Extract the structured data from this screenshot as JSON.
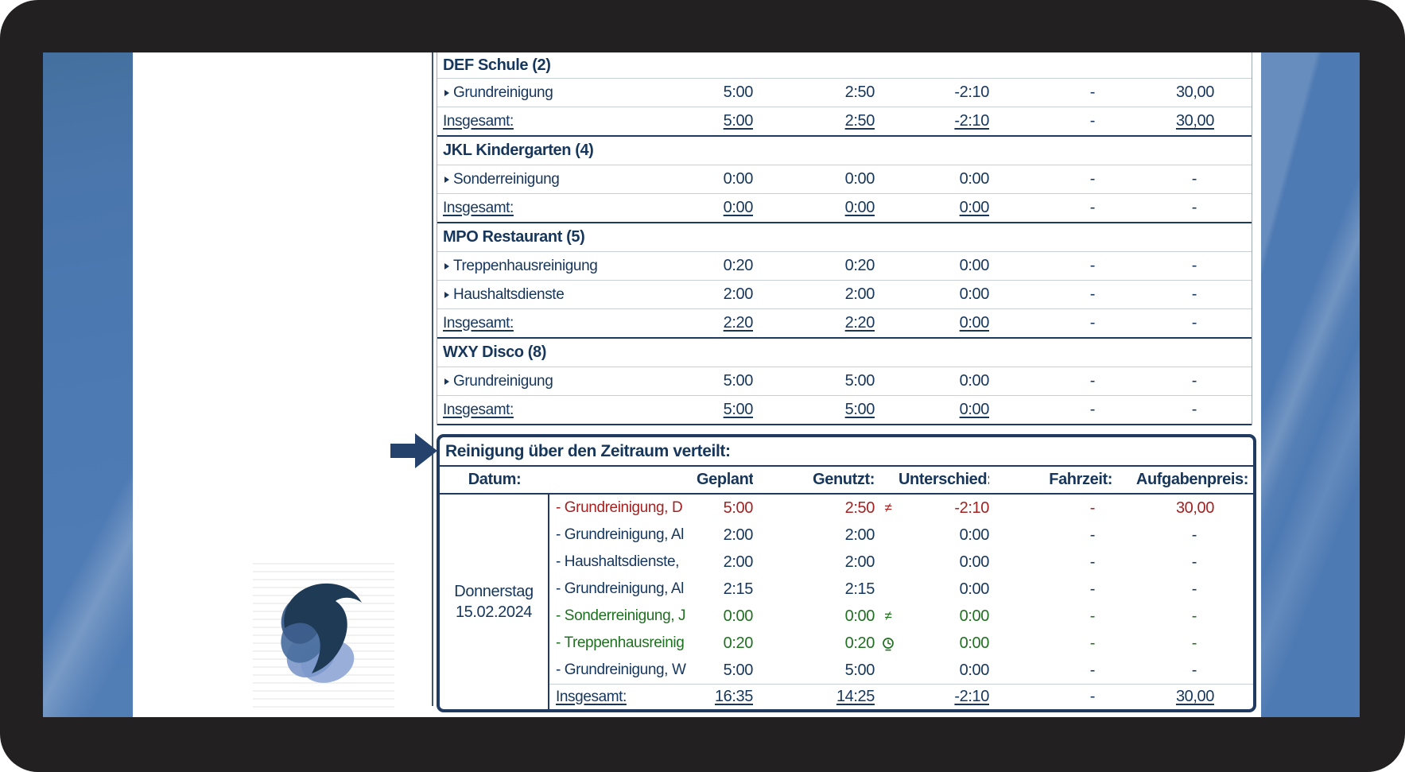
{
  "colors": {
    "navy_text": "#16365c",
    "alert_red": "#a32222",
    "ok_green": "#207021",
    "table_border_navy": "#203a60",
    "sidebar_blue": "#4e7ab3",
    "frame_dark": "#222020"
  },
  "icons": {
    "not_equal_symbol": "≠",
    "clock": "clock-icon",
    "expand_marker": "right-triangle",
    "pointer_arrow": "right-arrow"
  },
  "top_table": {
    "groups": [
      {
        "name": "DEF Schule (2)",
        "tasks": [
          {
            "name": "Grundreinigung",
            "geplant": "5:00",
            "genutzt": "2:50",
            "unterschied": "-2:10",
            "fahrzeit": "-",
            "preis": "30,00"
          }
        ],
        "total": {
          "label": "Insgesamt:",
          "geplant": "5:00",
          "genutzt": "2:50",
          "unterschied": "-2:10",
          "fahrzeit": "-",
          "preis": "30,00"
        }
      },
      {
        "name": "JKL Kindergarten (4)",
        "tasks": [
          {
            "name": "Sonderreinigung",
            "geplant": "0:00",
            "genutzt": "0:00",
            "unterschied": "0:00",
            "fahrzeit": "-",
            "preis": "-"
          }
        ],
        "total": {
          "label": "Insgesamt:",
          "geplant": "0:00",
          "genutzt": "0:00",
          "unterschied": "0:00",
          "fahrzeit": "-",
          "preis": "-"
        }
      },
      {
        "name": "MPO Restaurant (5)",
        "tasks": [
          {
            "name": "Treppenhausreinigung",
            "geplant": "0:20",
            "genutzt": "0:20",
            "unterschied": "0:00",
            "fahrzeit": "-",
            "preis": "-"
          },
          {
            "name": "Haushaltsdienste",
            "geplant": "2:00",
            "genutzt": "2:00",
            "unterschied": "0:00",
            "fahrzeit": "-",
            "preis": "-"
          }
        ],
        "total": {
          "label": "Insgesamt:",
          "geplant": "2:20",
          "genutzt": "2:20",
          "unterschied": "0:00",
          "fahrzeit": "-",
          "preis": "-"
        }
      },
      {
        "name": "WXY Disco (8)",
        "tasks": [
          {
            "name": "Grundreinigung",
            "geplant": "5:00",
            "genutzt": "5:00",
            "unterschied": "0:00",
            "fahrzeit": "-",
            "preis": "-"
          }
        ],
        "total": {
          "label": "Insgesamt:",
          "geplant": "5:00",
          "genutzt": "5:00",
          "unterschied": "0:00",
          "fahrzeit": "-",
          "preis": "-"
        }
      }
    ]
  },
  "summary_table": {
    "title": "Reinigung über den Zeitraum verteilt:",
    "headers": {
      "datum": "Datum:",
      "geplant": "Geplant:",
      "genutzt": "Genutzt:",
      "unterschied": "Unterschied:",
      "fahrzeit": "Fahrzeit:",
      "aufgabenpreis": "Aufgabenpreis:"
    },
    "date": {
      "weekday": "Donnerstag",
      "date": "15.02.2024"
    },
    "rows": [
      {
        "name": "- Grundreinigung, D",
        "color": "red",
        "geplant": "5:00",
        "genutzt": "2:50",
        "icon": "not-equal",
        "unterschied": "-2:10",
        "fahrzeit": "-",
        "preis": "30,00"
      },
      {
        "name": "- Grundreinigung, Al",
        "color": "navy",
        "geplant": "2:00",
        "genutzt": "2:00",
        "icon": "",
        "unterschied": "0:00",
        "fahrzeit": "-",
        "preis": "-"
      },
      {
        "name": "- Haushaltsdienste,",
        "color": "navy",
        "geplant": "2:00",
        "genutzt": "2:00",
        "icon": "",
        "unterschied": "0:00",
        "fahrzeit": "-",
        "preis": "-"
      },
      {
        "name": "- Grundreinigung, Al",
        "color": "navy",
        "geplant": "2:15",
        "genutzt": "2:15",
        "icon": "",
        "unterschied": "0:00",
        "fahrzeit": "-",
        "preis": "-"
      },
      {
        "name": "- Sonderreinigung, J",
        "color": "green",
        "geplant": "0:00",
        "genutzt": "0:00",
        "icon": "not-equal",
        "unterschied": "0:00",
        "fahrzeit": "-",
        "preis": "-"
      },
      {
        "name": "- Treppenhausreinig",
        "color": "green",
        "geplant": "0:20",
        "genutzt": "0:20",
        "icon": "clock",
        "unterschied": "0:00",
        "fahrzeit": "-",
        "preis": "-"
      },
      {
        "name": "- Grundreinigung, W",
        "color": "navy",
        "geplant": "5:00",
        "genutzt": "5:00",
        "icon": "",
        "unterschied": "0:00",
        "fahrzeit": "-",
        "preis": "-"
      }
    ],
    "totals": {
      "label": "Insgesamt:",
      "geplant": "16:35",
      "genutzt": "14:25",
      "unterschied": "-2:10",
      "fahrzeit": "-",
      "preis": "30,00"
    }
  }
}
